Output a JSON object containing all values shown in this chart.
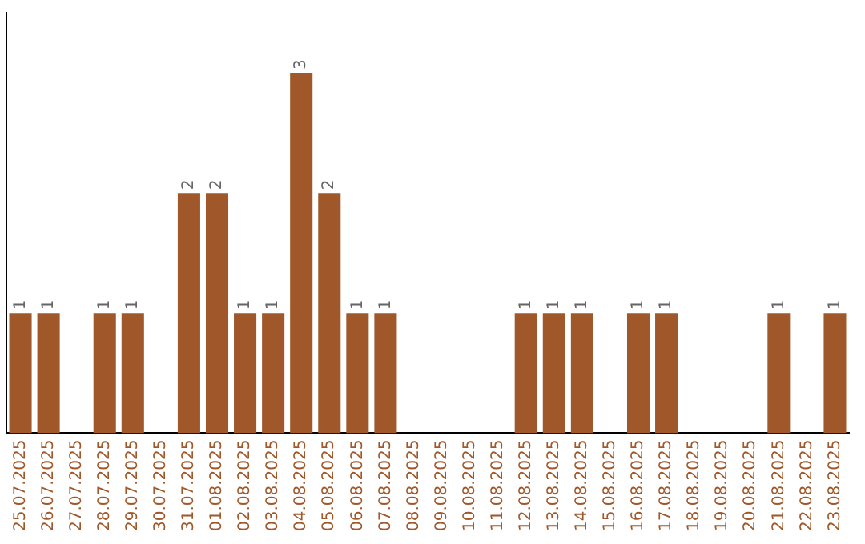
{
  "chart_data": {
    "type": "bar",
    "categories": [
      "25.07.2025",
      "26.07.2025",
      "27.07.2025",
      "28.07.2025",
      "29.07.2025",
      "30.07.2025",
      "31.07.2025",
      "01.08.2025",
      "02.08.2025",
      "03.08.2025",
      "04.08.2025",
      "05.08.2025",
      "06.08.2025",
      "07.08.2025",
      "08.08.2025",
      "09.08.2025",
      "10.08.2025",
      "11.08.2025",
      "12.08.2025",
      "13.08.2025",
      "14.08.2025",
      "15.08.2025",
      "16.08.2025",
      "17.08.2025",
      "18.08.2025",
      "19.08.2025",
      "20.08.2025",
      "21.08.2025",
      "22.08.2025",
      "23.08.2025"
    ],
    "values": [
      1,
      1,
      0,
      1,
      1,
      0,
      2,
      2,
      1,
      1,
      3,
      2,
      1,
      1,
      0,
      0,
      0,
      0,
      1,
      1,
      1,
      0,
      1,
      1,
      0,
      0,
      0,
      1,
      0,
      1
    ],
    "value_labels": [
      "1",
      "1",
      null,
      "1",
      "1",
      null,
      "2",
      "2",
      "1",
      "1",
      "3",
      "2",
      "1",
      "1",
      null,
      null,
      null,
      null,
      "1",
      "1",
      "1",
      null,
      "1",
      "1",
      null,
      null,
      null,
      "1",
      null,
      "1"
    ],
    "color": "#a0582a",
    "tick_labels": "x",
    "grid": false,
    "legend": false
  }
}
